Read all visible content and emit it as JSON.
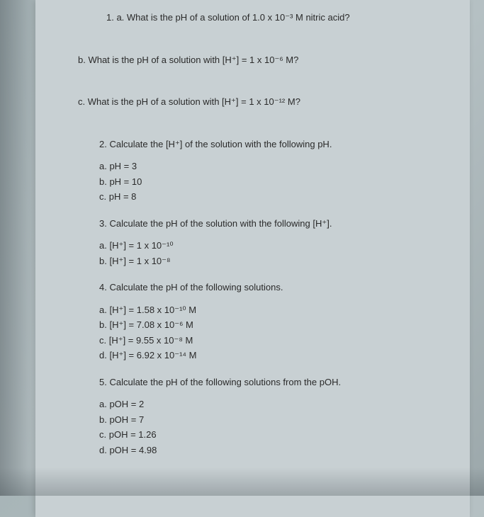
{
  "q1": {
    "a": "1.   a. What is the pH of a solution of 1.0 x 10⁻³ M nitric acid?",
    "b": "b. What is the pH of a solution with [H⁺] = 1 x 10⁻⁶ M?",
    "c": "c. What is the pH of a solution with [H⁺] = 1 x 10⁻¹² M?"
  },
  "q2": {
    "prompt": "2.   Calculate the [H⁺] of the solution with the following pH.",
    "items": {
      "a": "a.   pH = 3",
      "b": "b.   pH = 10",
      "c": "c.   pH = 8"
    }
  },
  "q3": {
    "prompt": "3.   Calculate the pH of the solution with the following [H⁺].",
    "items": {
      "a": "a.   [H⁺] = 1 x 10⁻¹⁰",
      "b": "b.   [H⁺] = 1 x 10⁻⁸"
    }
  },
  "q4": {
    "prompt": "4.   Calculate the pH of the following solutions.",
    "items": {
      "a": "a.   [H⁺] = 1.58 x 10⁻¹⁰ M",
      "b": "b.   [H⁺] = 7.08 x 10⁻⁶ M",
      "c": "c.   [H⁺] = 9.55 x 10⁻⁸ M",
      "d": "d.   [H⁺] = 6.92 x 10⁻¹⁴ M"
    }
  },
  "q5": {
    "prompt": "5.   Calculate the pH of the following solutions from the pOH.",
    "items": {
      "a": "a.   pOH = 2",
      "b": "b.   pOH = 7",
      "c": "c.   pOH = 1.26",
      "d": "d.   pOH = 4.98"
    }
  }
}
